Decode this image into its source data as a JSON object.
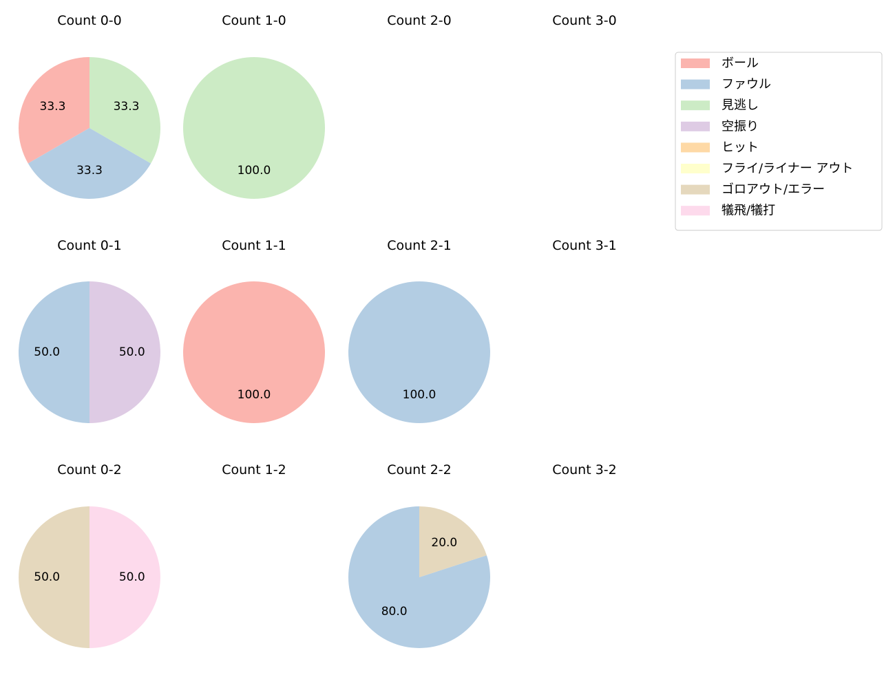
{
  "chart_data": {
    "type": "pie",
    "legend": {
      "placement": "top-right",
      "entries": [
        {
          "label": "ボール",
          "color": "#fbb4ae"
        },
        {
          "label": "ファウル",
          "color": "#b3cde3"
        },
        {
          "label": "見逃し",
          "color": "#ccebc5"
        },
        {
          "label": "空振り",
          "color": "#decbe4"
        },
        {
          "label": "ヒット",
          "color": "#fed9a6"
        },
        {
          "label": "フライ/ライナー アウト",
          "color": "#ffffcc"
        },
        {
          "label": "ゴロアウト/エラー",
          "color": "#e5d8bd"
        },
        {
          "label": "犠飛/犠打",
          "color": "#fddaec"
        }
      ]
    },
    "charts": [
      {
        "title": "Count 0-0",
        "slices": [
          {
            "category": "ボール",
            "value": 33.3
          },
          {
            "category": "ファウル",
            "value": 33.3
          },
          {
            "category": "見逃し",
            "value": 33.3
          }
        ]
      },
      {
        "title": "Count 1-0",
        "slices": [
          {
            "category": "見逃し",
            "value": 100.0
          }
        ]
      },
      {
        "title": "Count 2-0",
        "slices": []
      },
      {
        "title": "Count 3-0",
        "slices": []
      },
      {
        "title": "Count 0-1",
        "slices": [
          {
            "category": "ファウル",
            "value": 50.0
          },
          {
            "category": "空振り",
            "value": 50.0
          }
        ]
      },
      {
        "title": "Count 1-1",
        "slices": [
          {
            "category": "ボール",
            "value": 100.0
          }
        ]
      },
      {
        "title": "Count 2-1",
        "slices": [
          {
            "category": "ファウル",
            "value": 100.0
          }
        ]
      },
      {
        "title": "Count 3-1",
        "slices": []
      },
      {
        "title": "Count 0-2",
        "slices": [
          {
            "category": "ゴロアウト/エラー",
            "value": 50.0
          },
          {
            "category": "犠飛/犠打",
            "value": 50.0
          }
        ]
      },
      {
        "title": "Count 1-2",
        "slices": []
      },
      {
        "title": "Count 2-2",
        "slices": [
          {
            "category": "ファウル",
            "value": 80.0
          },
          {
            "category": "ゴロアウト/エラー",
            "value": 20.0
          }
        ]
      },
      {
        "title": "Count 3-2",
        "slices": []
      }
    ]
  }
}
